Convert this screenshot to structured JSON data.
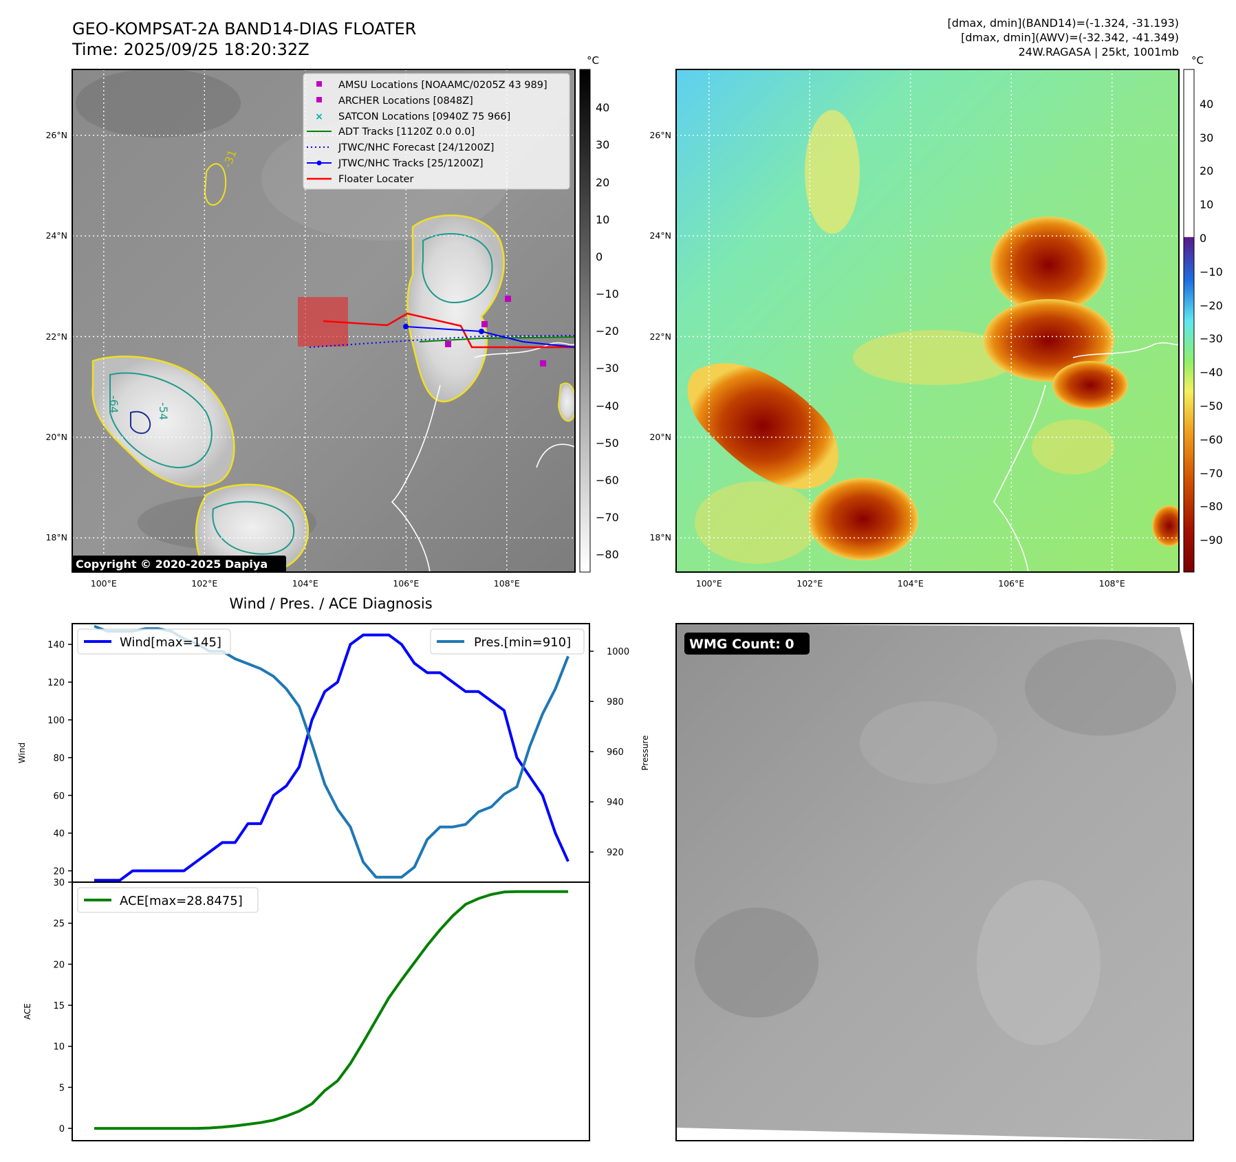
{
  "header": {
    "title_line1": "GEO-KOMPSAT-2A BAND14-DIAS FLOATER",
    "title_line2": "Time: 2025/09/25 18:20:32Z",
    "info_line1": "[dmax, dmin](BAND14)=(-1.324, -31.193)",
    "info_line2": "[dmax, dmin](AWV)=(-32.342, -41.349)",
    "info_line3": "24W.RAGASA | 25kt, 1001mb"
  },
  "ir_map": {
    "copyright": "Copyright © 2020-2025 Dapiya",
    "lon_ticks": [
      "100°E",
      "102°E",
      "104°E",
      "106°E",
      "108°E"
    ],
    "lat_ticks": [
      "26°N",
      "24°N",
      "22°N",
      "20°N",
      "18°N"
    ],
    "colorbar_unit": "°C",
    "colorbar_ticks": [
      "40",
      "30",
      "20",
      "10",
      "0",
      "−10",
      "−20",
      "−30",
      "−40",
      "−50",
      "−60",
      "−70",
      "−80"
    ],
    "contour_labels": [
      "-31",
      "-54",
      "-64"
    ],
    "legend": [
      {
        "label": "AMSU Locations [NOAAMC/0205Z 43 989]",
        "color": "#c000c0",
        "marker": "square"
      },
      {
        "label": "ARCHER Locations [0848Z]",
        "color": "#c000c0",
        "marker": "square"
      },
      {
        "label": "SATCON Locations [0940Z 75 966]",
        "color": "#00b0b0",
        "marker": "x"
      },
      {
        "label": "ADT Tracks [1120Z 0.0 0.0]",
        "color": "#008000",
        "marker": "line"
      },
      {
        "label": "JTWC/NHC Forecast [24/1200Z]",
        "color": "#0000ff",
        "marker": "dotted"
      },
      {
        "label": "JTWC/NHC Tracks [25/1200Z]",
        "color": "#0000ff",
        "marker": "line-dot"
      },
      {
        "label": "Floater Locater",
        "color": "#ff0000",
        "marker": "line"
      }
    ]
  },
  "awv_map": {
    "lon_ticks": [
      "100°E",
      "102°E",
      "104°E",
      "106°E",
      "108°E"
    ],
    "lat_ticks": [
      "26°N",
      "24°N",
      "22°N",
      "20°N",
      "18°N"
    ],
    "colorbar_unit": "°C",
    "colorbar_ticks": [
      "40",
      "30",
      "20",
      "10",
      "0",
      "−10",
      "−20",
      "−30",
      "−40",
      "−50",
      "−60",
      "−70",
      "−80",
      "−90"
    ]
  },
  "wmg": {
    "badge": "WMG Count: 0"
  },
  "chart_data": [
    {
      "type": "line",
      "title": "Wind / Pres. / ACE Diagnosis",
      "ylabel": "Wind",
      "y2label": "Pressure",
      "ylim": [
        14,
        151
      ],
      "y2lim": [
        908,
        1011
      ],
      "y_ticks": [
        20,
        40,
        60,
        80,
        100,
        120,
        140
      ],
      "y2_ticks": [
        920,
        940,
        960,
        980,
        1000
      ],
      "series": [
        {
          "name": "Wind[max=145]",
          "color": "#0000ff",
          "values": [
            15,
            15,
            15,
            20,
            20,
            20,
            20,
            20,
            25,
            30,
            35,
            35,
            45,
            45,
            60,
            65,
            75,
            100,
            115,
            120,
            140,
            145,
            145,
            145,
            140,
            130,
            125,
            125,
            120,
            115,
            115,
            110,
            105,
            80,
            70,
            60,
            40,
            25
          ]
        },
        {
          "name": "Pres.[min=910]",
          "color": "#1f77b4",
          "axis": "right",
          "values": [
            1010,
            1008,
            1008,
            1008,
            1009,
            1009,
            1008,
            1005,
            1003,
            1000,
            1000,
            997,
            995,
            993,
            990,
            985,
            978,
            963,
            947,
            937,
            930,
            916,
            910,
            910,
            910,
            914,
            925,
            930,
            930,
            931,
            936,
            938,
            943,
            946,
            962,
            975,
            985,
            998
          ]
        }
      ]
    },
    {
      "type": "line",
      "ylabel": "ACE",
      "ylim": [
        -1.5,
        30
      ],
      "y_ticks": [
        0,
        5,
        10,
        15,
        20,
        25,
        30
      ],
      "series": [
        {
          "name": "ACE[max=28.8475]",
          "color": "#008000",
          "values": [
            0,
            0,
            0,
            0,
            0,
            0,
            0,
            0,
            0,
            0.05,
            0.15,
            0.3,
            0.5,
            0.7,
            1.0,
            1.5,
            2.1,
            3.0,
            4.6,
            5.8,
            7.9,
            10.5,
            13.2,
            15.9,
            18.1,
            20.2,
            22.3,
            24.2,
            25.9,
            27.3,
            28.0,
            28.5,
            28.8,
            28.85,
            28.85,
            28.85,
            28.85,
            28.85
          ]
        }
      ]
    }
  ]
}
